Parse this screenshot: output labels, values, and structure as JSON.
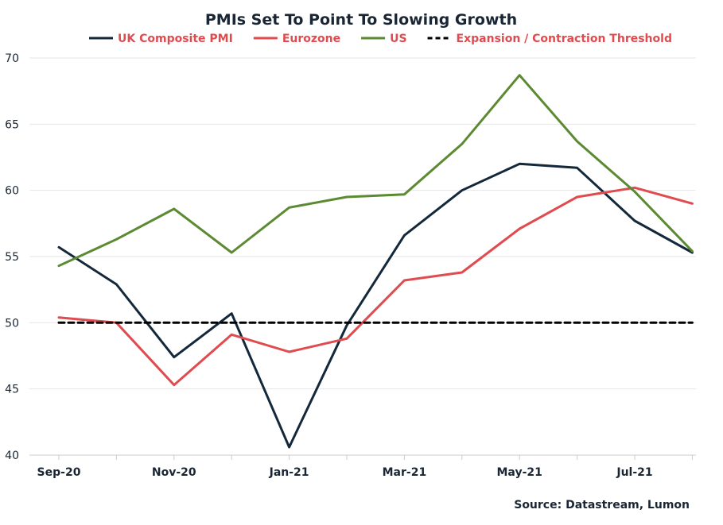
{
  "chart_data": {
    "type": "line",
    "title": "PMIs Set To Point To Slowing Growth",
    "source": "Source: Datastream, Lumon",
    "x": [
      "Sep-20",
      "Oct-20",
      "Nov-20",
      "Dec-20",
      "Jan-21",
      "Feb-21",
      "Mar-21",
      "Apr-21",
      "May-21",
      "Jun-21",
      "Jul-21",
      "Aug-21"
    ],
    "x_tick_labels": [
      "Sep-20",
      "Nov-20",
      "Jan-21",
      "Mar-21",
      "May-21",
      "Jul-21"
    ],
    "ylim": [
      40,
      70
    ],
    "y_ticks": [
      40,
      45,
      50,
      55,
      60,
      65,
      70
    ],
    "grid": "horizontal",
    "legend_position": "top",
    "series": [
      {
        "name": "UK Composite PMI",
        "color": "#13283a",
        "style": "solid",
        "values": [
          55.7,
          52.9,
          47.4,
          50.7,
          40.6,
          49.8,
          56.6,
          60.0,
          62.0,
          61.7,
          57.7,
          55.3
        ]
      },
      {
        "name": "Eurozone",
        "color": "#e04b4f",
        "style": "solid",
        "values": [
          50.4,
          50.0,
          45.3,
          49.1,
          47.8,
          48.8,
          53.2,
          53.8,
          57.1,
          59.5,
          60.2,
          59.0
        ]
      },
      {
        "name": "US",
        "color": "#5b8a33",
        "style": "solid",
        "values": [
          54.3,
          56.3,
          58.6,
          55.3,
          58.7,
          59.5,
          59.7,
          63.5,
          68.7,
          63.7,
          59.9,
          55.4
        ]
      },
      {
        "name": "Expansion / Contraction Threshold",
        "color": "#000000",
        "style": "dashed",
        "values": [
          50,
          50,
          50,
          50,
          50,
          50,
          50,
          50,
          50,
          50,
          50,
          50
        ]
      }
    ]
  }
}
